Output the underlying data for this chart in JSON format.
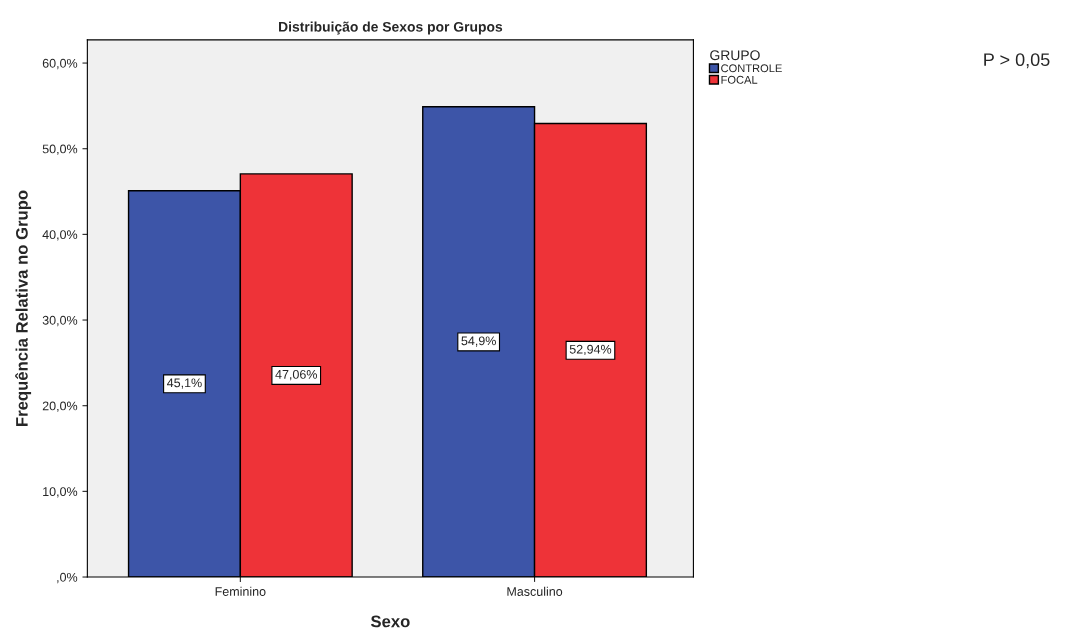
{
  "chart_data": {
    "type": "bar",
    "title": "Distribuição de Sexos por Grupos",
    "xlabel": "Sexo",
    "ylabel": "Frequência Relativa no Grupo",
    "legend_title": "GRUPO",
    "categories": [
      "Feminino",
      "Masculino"
    ],
    "series": [
      {
        "name": "CONTROLE",
        "color": "#3d55a8",
        "values": [
          45.1,
          54.9
        ],
        "value_labels": [
          "45,1%",
          "54,9%"
        ]
      },
      {
        "name": "FOCAL",
        "color": "#ee3338",
        "values": [
          47.06,
          52.94
        ],
        "value_labels": [
          "47,06%",
          "52,94%"
        ]
      }
    ],
    "ylim": [
      0,
      62.7
    ],
    "yticks": [
      {
        "value": 0,
        "label": ",0%"
      },
      {
        "value": 10,
        "label": "10,0%"
      },
      {
        "value": 20,
        "label": "20,0%"
      },
      {
        "value": 30,
        "label": "30,0%"
      },
      {
        "value": 40,
        "label": "40,0%"
      },
      {
        "value": 50,
        "label": "50,0%"
      },
      {
        "value": 60,
        "label": "60,0%"
      }
    ],
    "grid": false,
    "legend": "top right",
    "annotations": [
      "P > 0,05"
    ]
  }
}
